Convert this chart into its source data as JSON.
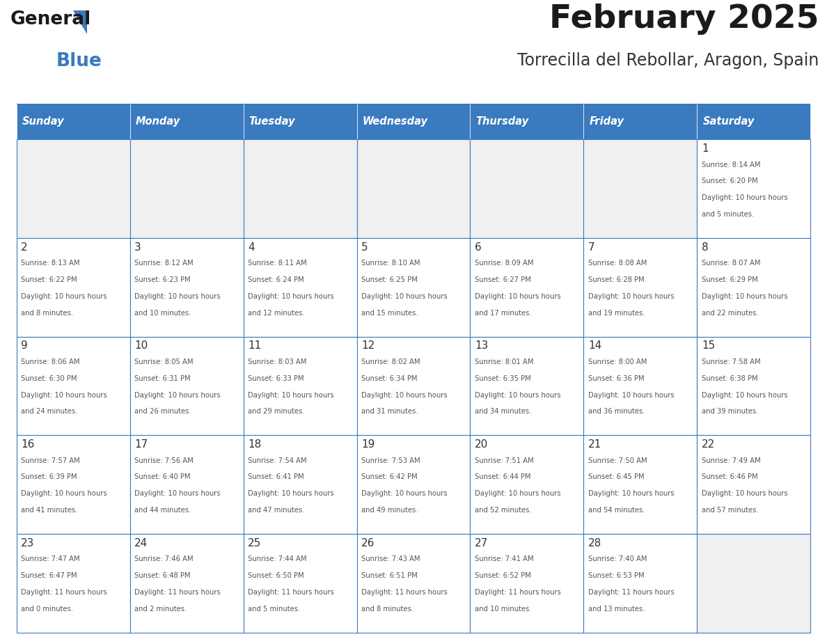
{
  "title": "February 2025",
  "subtitle": "Torrecilla del Rebollar, Aragon, Spain",
  "header_color": "#3a7abf",
  "header_text_color": "#ffffff",
  "border_color": "#3a7abf",
  "text_color": "#333333",
  "days_of_week": [
    "Sunday",
    "Monday",
    "Tuesday",
    "Wednesday",
    "Thursday",
    "Friday",
    "Saturday"
  ],
  "calendar_data": [
    [
      null,
      null,
      null,
      null,
      null,
      null,
      {
        "day": 1,
        "sunrise": "8:14 AM",
        "sunset": "6:20 PM",
        "daylight": "10 hours and 5 minutes."
      }
    ],
    [
      {
        "day": 2,
        "sunrise": "8:13 AM",
        "sunset": "6:22 PM",
        "daylight": "10 hours and 8 minutes."
      },
      {
        "day": 3,
        "sunrise": "8:12 AM",
        "sunset": "6:23 PM",
        "daylight": "10 hours and 10 minutes."
      },
      {
        "day": 4,
        "sunrise": "8:11 AM",
        "sunset": "6:24 PM",
        "daylight": "10 hours and 12 minutes."
      },
      {
        "day": 5,
        "sunrise": "8:10 AM",
        "sunset": "6:25 PM",
        "daylight": "10 hours and 15 minutes."
      },
      {
        "day": 6,
        "sunrise": "8:09 AM",
        "sunset": "6:27 PM",
        "daylight": "10 hours and 17 minutes."
      },
      {
        "day": 7,
        "sunrise": "8:08 AM",
        "sunset": "6:28 PM",
        "daylight": "10 hours and 19 minutes."
      },
      {
        "day": 8,
        "sunrise": "8:07 AM",
        "sunset": "6:29 PM",
        "daylight": "10 hours and 22 minutes."
      }
    ],
    [
      {
        "day": 9,
        "sunrise": "8:06 AM",
        "sunset": "6:30 PM",
        "daylight": "10 hours and 24 minutes."
      },
      {
        "day": 10,
        "sunrise": "8:05 AM",
        "sunset": "6:31 PM",
        "daylight": "10 hours and 26 minutes."
      },
      {
        "day": 11,
        "sunrise": "8:03 AM",
        "sunset": "6:33 PM",
        "daylight": "10 hours and 29 minutes."
      },
      {
        "day": 12,
        "sunrise": "8:02 AM",
        "sunset": "6:34 PM",
        "daylight": "10 hours and 31 minutes."
      },
      {
        "day": 13,
        "sunrise": "8:01 AM",
        "sunset": "6:35 PM",
        "daylight": "10 hours and 34 minutes."
      },
      {
        "day": 14,
        "sunrise": "8:00 AM",
        "sunset": "6:36 PM",
        "daylight": "10 hours and 36 minutes."
      },
      {
        "day": 15,
        "sunrise": "7:58 AM",
        "sunset": "6:38 PM",
        "daylight": "10 hours and 39 minutes."
      }
    ],
    [
      {
        "day": 16,
        "sunrise": "7:57 AM",
        "sunset": "6:39 PM",
        "daylight": "10 hours and 41 minutes."
      },
      {
        "day": 17,
        "sunrise": "7:56 AM",
        "sunset": "6:40 PM",
        "daylight": "10 hours and 44 minutes."
      },
      {
        "day": 18,
        "sunrise": "7:54 AM",
        "sunset": "6:41 PM",
        "daylight": "10 hours and 47 minutes."
      },
      {
        "day": 19,
        "sunrise": "7:53 AM",
        "sunset": "6:42 PM",
        "daylight": "10 hours and 49 minutes."
      },
      {
        "day": 20,
        "sunrise": "7:51 AM",
        "sunset": "6:44 PM",
        "daylight": "10 hours and 52 minutes."
      },
      {
        "day": 21,
        "sunrise": "7:50 AM",
        "sunset": "6:45 PM",
        "daylight": "10 hours and 54 minutes."
      },
      {
        "day": 22,
        "sunrise": "7:49 AM",
        "sunset": "6:46 PM",
        "daylight": "10 hours and 57 minutes."
      }
    ],
    [
      {
        "day": 23,
        "sunrise": "7:47 AM",
        "sunset": "6:47 PM",
        "daylight": "11 hours and 0 minutes."
      },
      {
        "day": 24,
        "sunrise": "7:46 AM",
        "sunset": "6:48 PM",
        "daylight": "11 hours and 2 minutes."
      },
      {
        "day": 25,
        "sunrise": "7:44 AM",
        "sunset": "6:50 PM",
        "daylight": "11 hours and 5 minutes."
      },
      {
        "day": 26,
        "sunrise": "7:43 AM",
        "sunset": "6:51 PM",
        "daylight": "11 hours and 8 minutes."
      },
      {
        "day": 27,
        "sunrise": "7:41 AM",
        "sunset": "6:52 PM",
        "daylight": "11 hours and 10 minutes."
      },
      {
        "day": 28,
        "sunrise": "7:40 AM",
        "sunset": "6:53 PM",
        "daylight": "11 hours and 13 minutes."
      },
      null
    ]
  ]
}
